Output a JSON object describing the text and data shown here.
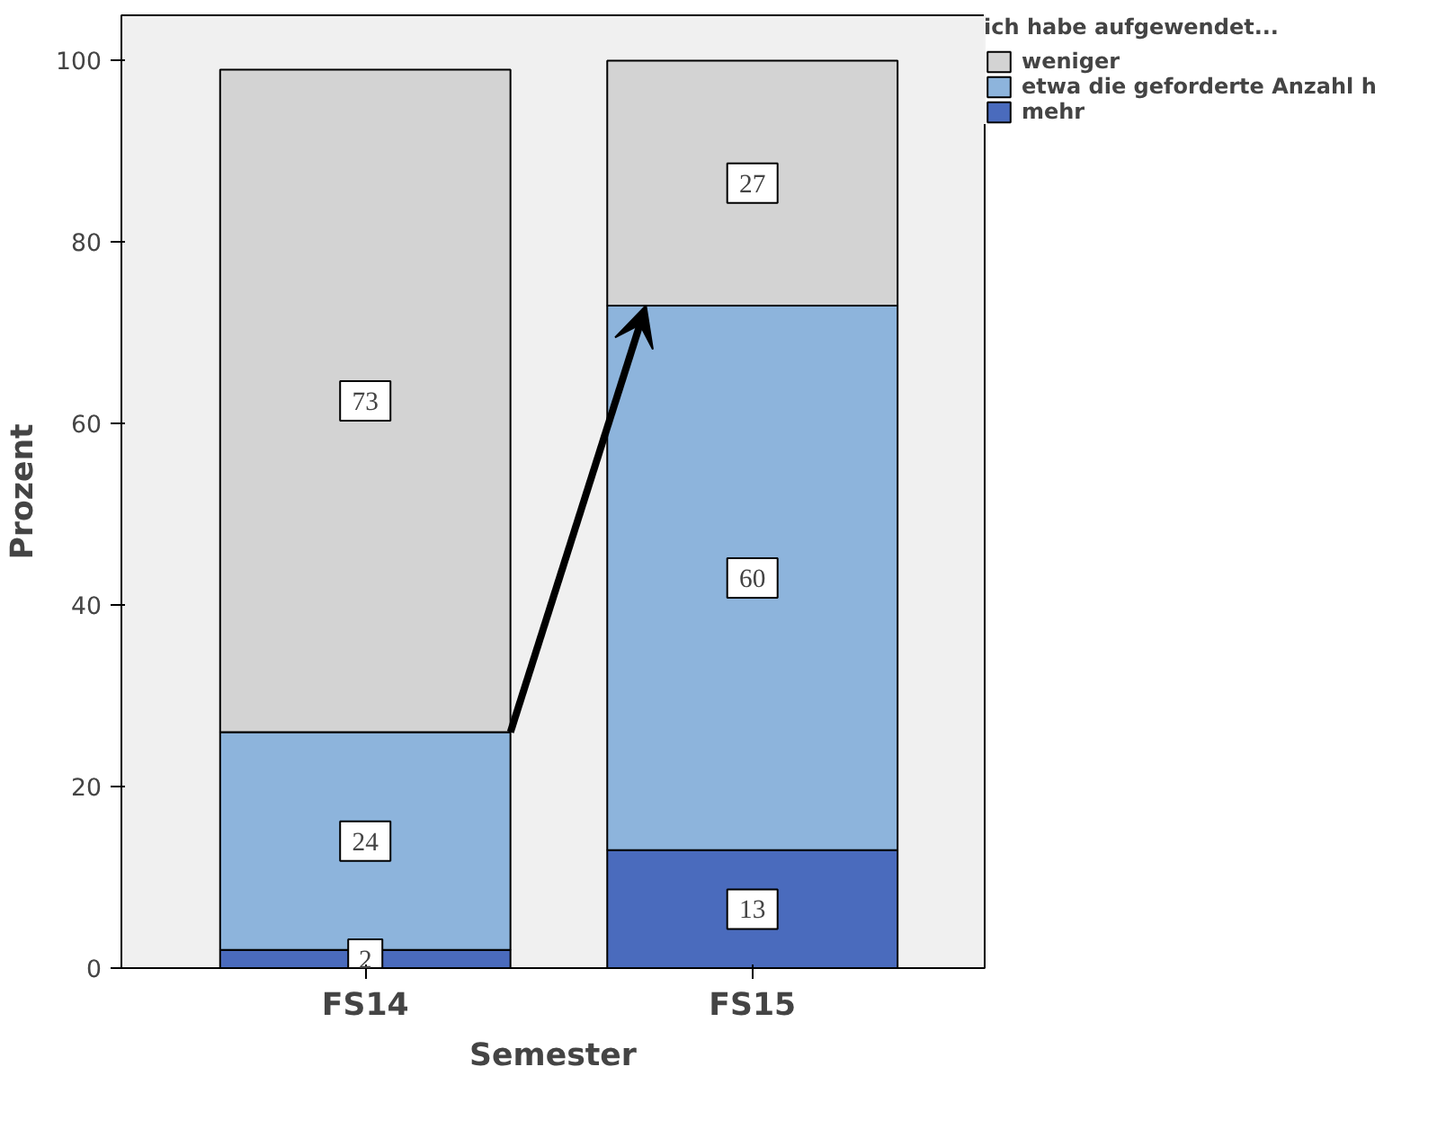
{
  "chart_data": {
    "type": "bar",
    "stacked": true,
    "xlabel": "Semester",
    "ylabel": "Prozent",
    "legend_title": "ich habe aufgewendet...",
    "legend": "top right",
    "categories": [
      "FS14",
      "FS15"
    ],
    "series": [
      {
        "name": "mehr",
        "color": "#4a6bbd",
        "values": [
          2,
          13
        ]
      },
      {
        "name": "etwa die geforderte Anzahl h",
        "color": "#8db4dc",
        "values": [
          24,
          60
        ]
      },
      {
        "name": "weniger",
        "color": "#d3d3d3",
        "values": [
          73,
          27
        ]
      }
    ],
    "ylim": [
      0,
      105
    ],
    "yticks": [
      0,
      20,
      40,
      60,
      80,
      100
    ],
    "grid": false,
    "data_labels": true
  }
}
